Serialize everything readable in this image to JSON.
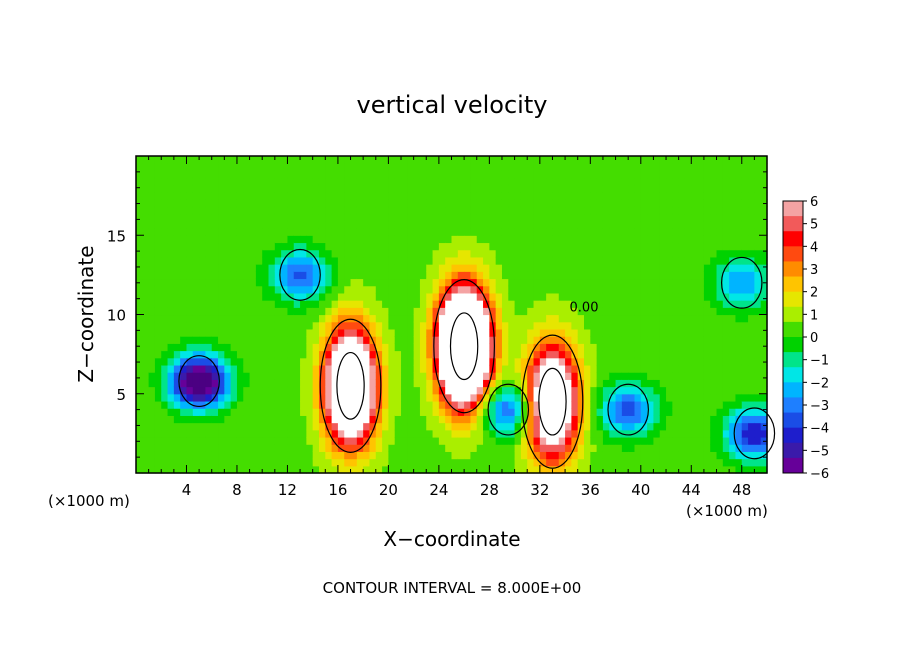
{
  "chart_data": {
    "type": "heatmap",
    "title": "vertical velocity",
    "xlabel": "X−coordinate",
    "ylabel": "Z−coordinate",
    "x_unit_left": "(×1000 m)",
    "x_unit_right": "(×1000 m)",
    "xlim": [
      0,
      50
    ],
    "ylim": [
      0,
      20
    ],
    "x_ticks": [
      4,
      8,
      12,
      16,
      20,
      24,
      28,
      32,
      36,
      40,
      44,
      48
    ],
    "y_ticks": [
      5,
      10,
      15
    ],
    "colorbar": {
      "tick_labels": [
        "6",
        "5",
        "4",
        "3",
        "2",
        "1",
        "0",
        "−1",
        "−2",
        "−3",
        "−4",
        "−5",
        "−6"
      ],
      "tick_values": [
        6,
        5,
        4,
        3,
        2,
        1,
        0,
        -1,
        -2,
        -3,
        -4,
        -5,
        -6
      ],
      "colors": [
        "#f4a3a3",
        "#f25a5a",
        "#ff0000",
        "#ff4a10",
        "#ff8c00",
        "#ffc400",
        "#e6e600",
        "#aaee00",
        "#44dd00",
        "#00d200",
        "#00e48a",
        "#00e6e6",
        "#00b4ff",
        "#1e7fff",
        "#1a4de6",
        "#1e1ecc",
        "#3a1aaa",
        "#660099"
      ]
    },
    "contour_interval_text": "CONTOUR INTERVAL = 8.000E+00",
    "contour_label": "0.00",
    "features": [
      {
        "kind": "updraft",
        "x": 17,
        "z": 5.5,
        "peak": 12
      },
      {
        "kind": "updraft",
        "x": 26,
        "z": 8,
        "peak": 16
      },
      {
        "kind": "updraft",
        "x": 33,
        "z": 4.5,
        "peak": 10
      },
      {
        "kind": "downdraft",
        "x": 5,
        "z": 5.8,
        "peak": -8
      },
      {
        "kind": "downdraft",
        "x": 13,
        "z": 12.5,
        "peak": -4
      },
      {
        "kind": "downdraft",
        "x": 29.5,
        "z": 4,
        "peak": -4
      },
      {
        "kind": "downdraft",
        "x": 39,
        "z": 4,
        "peak": -4
      },
      {
        "kind": "downdraft",
        "x": 48,
        "z": 12,
        "peak": -3
      },
      {
        "kind": "downdraft",
        "x": 49,
        "z": 2.5,
        "peak": -5
      }
    ]
  }
}
